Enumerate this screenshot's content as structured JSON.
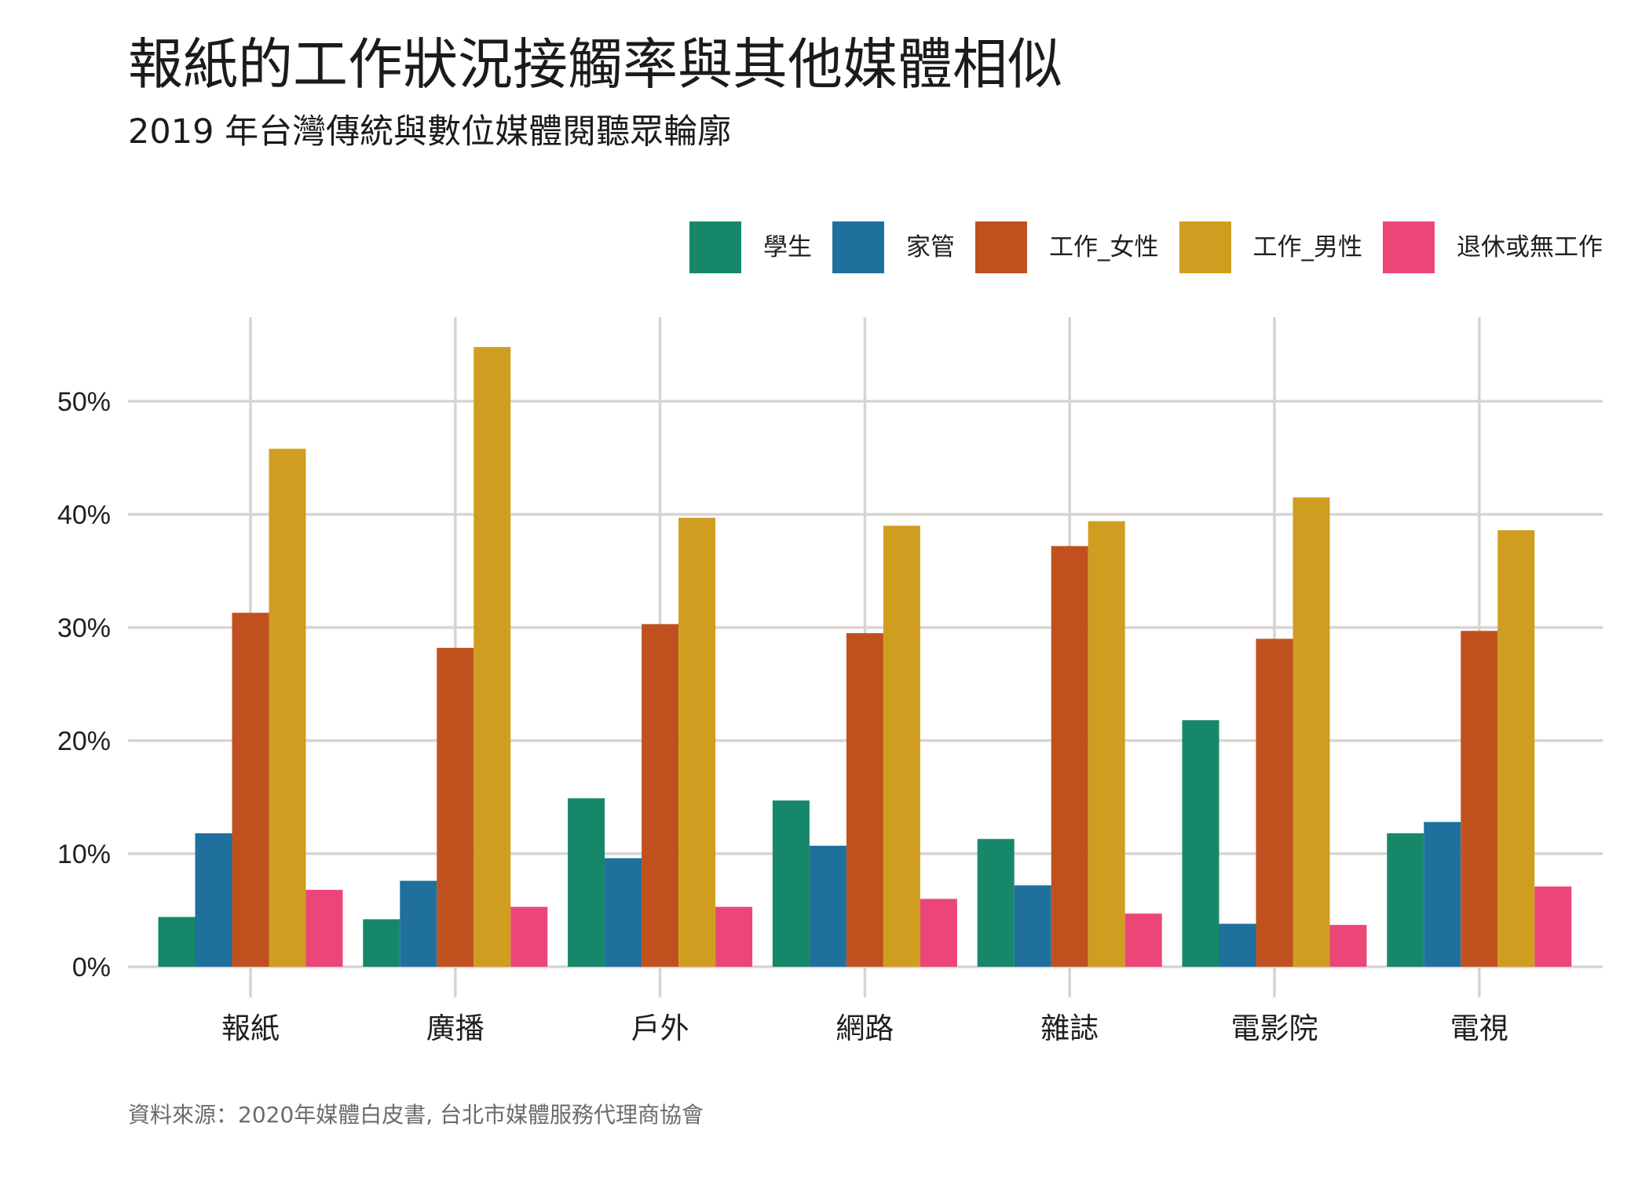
{
  "header": {
    "title": "報紙的工作狀況接觸率與其他媒體相似",
    "subtitle": "2019 年台灣傳統與數位媒體閱聽眾輪廓"
  },
  "legend": {
    "position": "top-right",
    "items": [
      {
        "label": "學生",
        "color": "#168869"
      },
      {
        "label": "家管",
        "color": "#1f709c"
      },
      {
        "label": "工作_女性",
        "color": "#c0511f"
      },
      {
        "label": "工作_男性",
        "color": "#cf9e20"
      },
      {
        "label": "退休或無工作",
        "color": "#ec4679"
      }
    ]
  },
  "caption": "資料來源：2020年媒體白皮書, 台北市媒體服務代理商協會",
  "chart_data": {
    "type": "bar",
    "title": "報紙的工作狀況接觸率與其他媒體相似",
    "subtitle": "2019 年台灣傳統與數位媒體閱聽眾輪廓",
    "xlabel": "",
    "ylabel": "",
    "ylim": [
      0,
      57
    ],
    "yticks": [
      0,
      10,
      20,
      30,
      40,
      50
    ],
    "ytick_labels": [
      "0%",
      "10%",
      "20%",
      "30%",
      "40%",
      "50%"
    ],
    "grid": true,
    "legend_position": "top-right",
    "categories": [
      "報紙",
      "廣播",
      "戶外",
      "網路",
      "雜誌",
      "電影院",
      "電視"
    ],
    "series": [
      {
        "name": "學生",
        "color": "#168869",
        "values": [
          4.4,
          4.2,
          14.9,
          14.7,
          11.3,
          21.8,
          11.8
        ]
      },
      {
        "name": "家管",
        "color": "#1f709c",
        "values": [
          11.8,
          7.6,
          9.6,
          10.7,
          7.2,
          3.8,
          12.8
        ]
      },
      {
        "name": "工作_女性",
        "color": "#c0511f",
        "values": [
          31.3,
          28.2,
          30.3,
          29.5,
          37.2,
          29.0,
          29.7
        ]
      },
      {
        "name": "工作_男性",
        "color": "#cf9e20",
        "values": [
          45.8,
          54.8,
          39.7,
          39.0,
          39.4,
          41.5,
          38.6
        ]
      },
      {
        "name": "退休或無工作",
        "color": "#ec4679",
        "values": [
          6.8,
          5.3,
          5.3,
          6.0,
          4.7,
          3.7,
          7.1
        ]
      }
    ],
    "caption": "資料來源：2020年媒體白皮書, 台北市媒體服務代理商協會"
  },
  "style": {
    "grid_color": "#d9d4d2",
    "text_color": "#1f1f1f",
    "caption_color": "#6b6b6b"
  }
}
